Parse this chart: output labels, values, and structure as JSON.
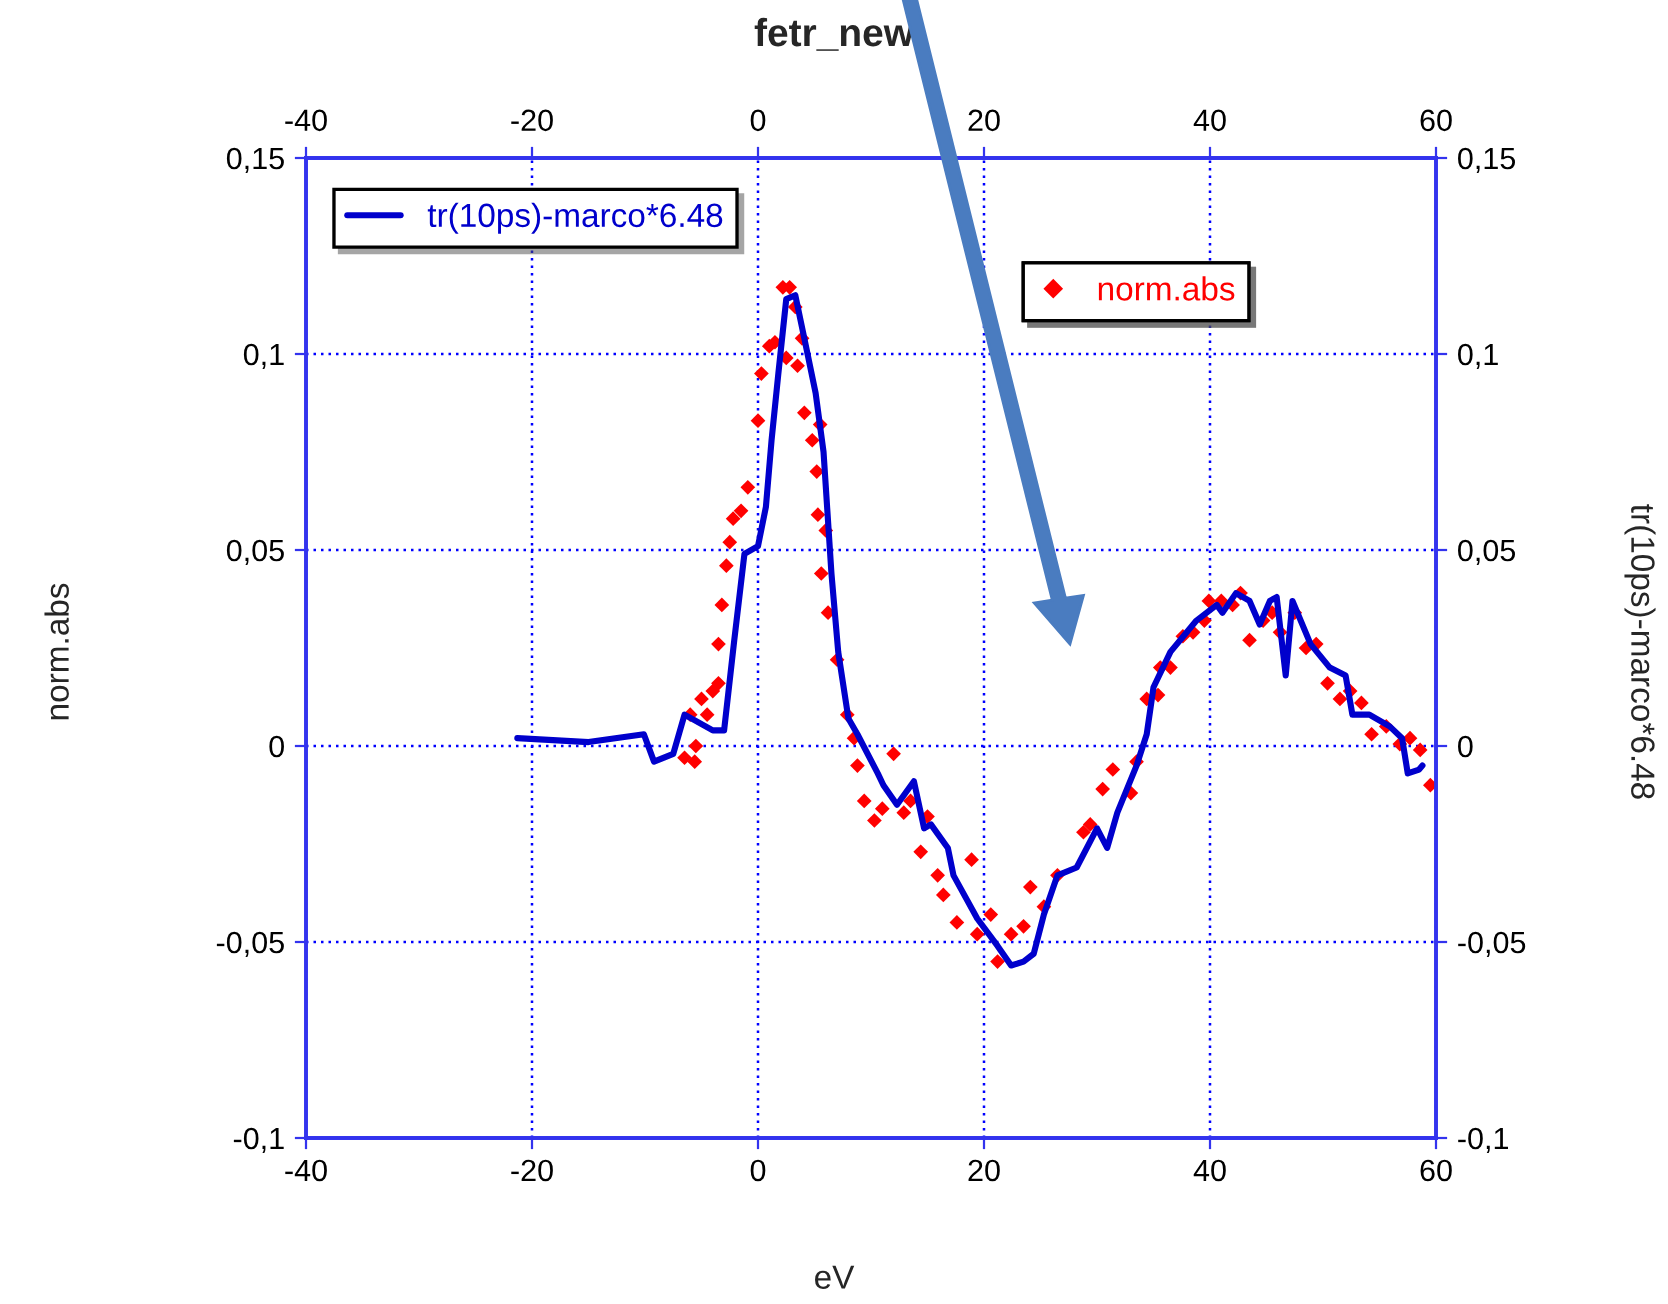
{
  "chart_data": {
    "type": "line",
    "title": "fetr_new",
    "xlabel": "eV",
    "ylabel": "norm.abs",
    "y2label": "tr(10ps)-marco*6.48",
    "xlim": [
      -40,
      60
    ],
    "xticks": [
      -40,
      -20,
      0,
      20,
      40,
      60
    ],
    "x2lim": [
      -40,
      60
    ],
    "x2ticks": [
      -40,
      -20,
      0,
      20,
      40,
      60
    ],
    "ylim": [
      -0.1,
      0.15
    ],
    "yticks": [
      {
        "value": -0.1,
        "label": "-0,1"
      },
      {
        "value": -0.05,
        "label": "-0,05"
      },
      {
        "value": 0,
        "label": "0"
      },
      {
        "value": 0.05,
        "label": "0,05"
      },
      {
        "value": 0.1,
        "label": "0,1"
      },
      {
        "value": 0.15,
        "label": "0,15"
      }
    ],
    "y2lim": [
      -0.1,
      0.15
    ],
    "y2ticks": [
      {
        "value": -0.1,
        "label": "-0,1"
      },
      {
        "value": -0.05,
        "label": "-0,05"
      },
      {
        "value": 0,
        "label": "0"
      },
      {
        "value": 0.05,
        "label": "0,05"
      },
      {
        "value": 0.1,
        "label": "0,1"
      },
      {
        "value": 0.15,
        "label": "0,15"
      }
    ],
    "grid": true,
    "legend": "top",
    "series": [
      {
        "name": "tr(10ps)-marco*6.48",
        "axis": "y2",
        "color": "#0000cc",
        "line_style": "solid",
        "marker": "none",
        "x": [
          -21.3,
          -15,
          -10.1,
          -9.2,
          -7.5,
          -6.5,
          -4,
          -3,
          -2.1,
          -1.2,
          0,
          0.7,
          1.2,
          1.8,
          2.5,
          3.3,
          4.1,
          5.1,
          5.8,
          6.5,
          7.1,
          8,
          8.8,
          10.6,
          11.1,
          12.3,
          13.8,
          14.7,
          15.3,
          16.8,
          17.3,
          19.4,
          21.2,
          22.4,
          23.5,
          24.4,
          25.3,
          26.5,
          28.2,
          30,
          30.9,
          31.8,
          33.5,
          34.4,
          35,
          36.5,
          38.8,
          40.6,
          41.1,
          42.3,
          43.5,
          44.4,
          45.3,
          45.9,
          46.7,
          47.3,
          48.9,
          50.6,
          52,
          52.6,
          54.1,
          55.9,
          57,
          57.5,
          58.5,
          58.8
        ],
        "values": [
          0.002,
          0.001,
          0.003,
          -0.004,
          -0.002,
          0.008,
          0.004,
          0.004,
          0.027,
          0.049,
          0.051,
          0.061,
          0.078,
          0.095,
          0.114,
          0.115,
          0.104,
          0.09,
          0.075,
          0.044,
          0.024,
          0.007,
          0.003,
          -0.007,
          -0.01,
          -0.015,
          -0.009,
          -0.021,
          -0.02,
          -0.026,
          -0.033,
          -0.044,
          -0.051,
          -0.056,
          -0.055,
          -0.053,
          -0.043,
          -0.033,
          -0.031,
          -0.021,
          -0.026,
          -0.017,
          -0.005,
          0.003,
          0.015,
          0.024,
          0.032,
          0.036,
          0.034,
          0.039,
          0.037,
          0.031,
          0.037,
          0.038,
          0.018,
          0.037,
          0.026,
          0.02,
          0.018,
          0.008,
          0.008,
          0.005,
          0.002,
          -0.007,
          -0.006,
          -0.005
        ]
      },
      {
        "name": "norm.abs",
        "type": "scatter",
        "color": "#ff0000",
        "marker": "diamond",
        "x": [
          -6.5,
          -6,
          -5.6,
          -5.5,
          -5,
          -4.5,
          -4,
          -3.5,
          -3.5,
          -3.2,
          -2.8,
          -2.5,
          -2.2,
          -1.5,
          -0.9,
          0,
          0.3,
          1,
          1.5,
          2.2,
          2.8,
          3.3,
          2.5,
          3.5,
          3.9,
          4.1,
          5.5,
          4.8,
          5.2,
          5.3,
          6,
          5.6,
          6.2,
          7,
          7.9,
          8.5,
          8.8,
          9.4,
          10.3,
          11,
          12,
          12.9,
          13.5,
          14.4,
          15,
          15.9,
          16.4,
          17.6,
          18.9,
          19.4,
          20.6,
          21.2,
          22.4,
          23.5,
          24.1,
          25.3,
          26.5,
          28.8,
          29.4,
          30.5,
          31.4,
          33,
          33.5,
          34.4,
          35.4,
          35.6,
          36.5,
          37.6,
          38.5,
          39.5,
          39.9,
          41,
          42,
          42.7,
          43.5,
          44.7,
          45.5,
          46.2,
          47.5,
          48.5,
          49.4,
          50.4,
          51.5,
          52.4,
          53.4,
          54.3,
          55.6,
          56.8,
          57.7,
          58.6,
          59.5
        ],
        "values": [
          -0.003,
          0.008,
          -0.004,
          0.0,
          0.012,
          0.008,
          0.014,
          0.016,
          0.026,
          0.036,
          0.046,
          0.052,
          0.058,
          0.06,
          0.066,
          0.083,
          0.095,
          0.102,
          0.103,
          0.117,
          0.117,
          0.112,
          0.099,
          0.097,
          0.104,
          0.085,
          0.082,
          0.078,
          0.07,
          0.059,
          0.055,
          0.044,
          0.034,
          0.022,
          0.008,
          0.002,
          -0.005,
          -0.014,
          -0.019,
          -0.016,
          -0.002,
          -0.017,
          -0.014,
          -0.027,
          -0.018,
          -0.033,
          -0.038,
          -0.045,
          -0.029,
          -0.048,
          -0.043,
          -0.055,
          -0.048,
          -0.046,
          -0.036,
          -0.041,
          -0.033,
          -0.022,
          -0.02,
          -0.011,
          -0.006,
          -0.012,
          -0.004,
          0.012,
          0.013,
          0.02,
          0.02,
          0.028,
          0.029,
          0.032,
          0.037,
          0.037,
          0.036,
          0.039,
          0.027,
          0.032,
          0.034,
          0.029,
          0.034,
          0.025,
          0.026,
          0.016,
          0.012,
          0.014,
          0.011,
          0.003,
          0.005,
          0.0005,
          0.002,
          -0.001,
          -0.01
        ]
      }
    ]
  }
}
